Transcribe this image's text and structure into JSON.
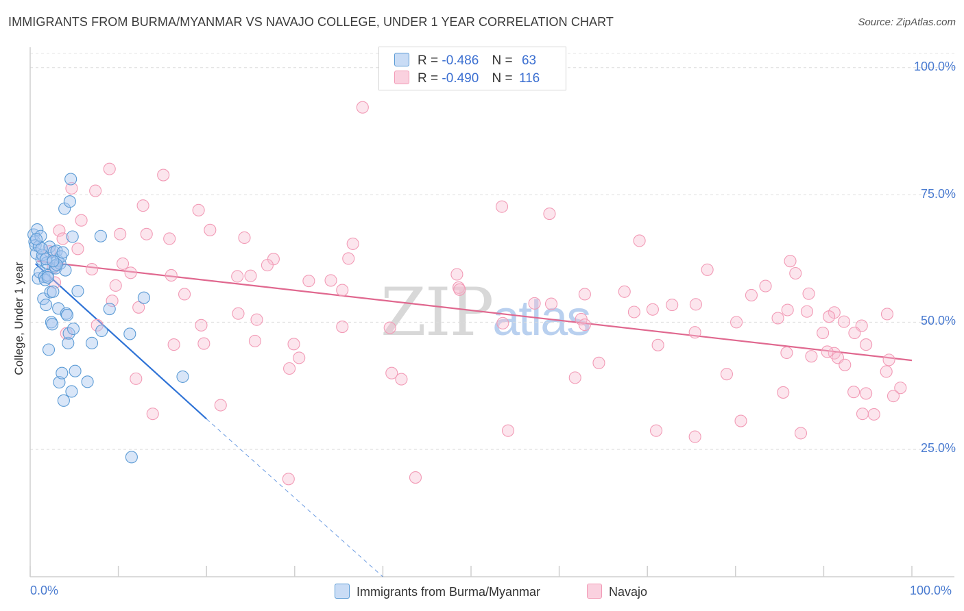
{
  "title": "IMMIGRANTS FROM BURMA/MYANMAR VS NAVAJO COLLEGE, UNDER 1 YEAR CORRELATION CHART",
  "source": "Source: ZipAtlas.com",
  "watermark": {
    "zip": "ZIP",
    "atlas": "atlas"
  },
  "colors": {
    "blue": "#5b9bd5",
    "blue_line": "#2f73d6",
    "pink": "#f29bb6",
    "pink_line": "#e0688f",
    "tick_text": "#4a7bd0"
  },
  "legend": {
    "rows": [
      {
        "r_label": "R =",
        "r_value": "-0.486",
        "n_label": "N =",
        "n_value": "63"
      },
      {
        "r_label": "R =",
        "r_value": "-0.490",
        "n_label": "N =",
        "n_value": "116"
      }
    ]
  },
  "chart_data": {
    "type": "scatter",
    "title": "IMMIGRANTS FROM BURMA/MYANMAR VS NAVAJO COLLEGE, UNDER 1 YEAR CORRELATION CHART",
    "xlabel": "",
    "ylabel": "College, Under 1 year",
    "xlim": [
      0,
      100
    ],
    "ylim": [
      0,
      104
    ],
    "x_tick_labels": [
      "0.0%",
      "100.0%"
    ],
    "y_tick_labels": [
      "100.0%",
      "75.0%",
      "50.0%",
      "25.0%"
    ],
    "y_ticks": [
      100,
      75,
      50,
      25
    ],
    "grid": true,
    "series": [
      {
        "name": "Immigrants from Burma/Myanmar",
        "trend": {
          "x0": 0.6,
          "y0": 61.5,
          "x1": 20,
          "y1": 31,
          "dash_to_x": 40,
          "dash_to_y": 0
        },
        "points": [
          [
            0.4,
            67.2
          ],
          [
            0.5,
            65.8
          ],
          [
            0.6,
            65.1
          ],
          [
            0.7,
            63.5
          ],
          [
            0.8,
            68.2
          ],
          [
            0.9,
            58.6
          ],
          [
            1.0,
            64.9
          ],
          [
            1.1,
            59.8
          ],
          [
            1.2,
            66.9
          ],
          [
            1.3,
            62.3
          ],
          [
            1.4,
            63.2
          ],
          [
            1.5,
            54.6
          ],
          [
            1.6,
            58.9
          ],
          [
            1.7,
            58.3
          ],
          [
            1.8,
            53.4
          ],
          [
            1.9,
            61.7
          ],
          [
            2.0,
            59.2
          ],
          [
            2.1,
            44.6
          ],
          [
            2.2,
            64.8
          ],
          [
            2.3,
            55.9
          ],
          [
            2.4,
            50.0
          ],
          [
            2.5,
            49.6
          ],
          [
            2.6,
            56.0
          ],
          [
            2.7,
            63.8
          ],
          [
            2.8,
            61.0
          ],
          [
            2.9,
            60.6
          ],
          [
            3.0,
            64.0
          ],
          [
            3.1,
            62.1
          ],
          [
            3.2,
            52.7
          ],
          [
            3.3,
            38.2
          ],
          [
            3.4,
            61.5
          ],
          [
            3.5,
            62.9
          ],
          [
            3.6,
            40.0
          ],
          [
            3.7,
            63.7
          ],
          [
            3.8,
            34.6
          ],
          [
            3.9,
            72.3
          ],
          [
            4.0,
            60.2
          ],
          [
            4.1,
            51.7
          ],
          [
            4.2,
            51.4
          ],
          [
            4.3,
            45.9
          ],
          [
            4.4,
            47.8
          ],
          [
            4.5,
            73.7
          ],
          [
            4.6,
            78.1
          ],
          [
            4.7,
            36.4
          ],
          [
            4.8,
            66.8
          ],
          [
            4.9,
            48.7
          ],
          [
            5.1,
            40.4
          ],
          [
            5.4,
            56.1
          ],
          [
            6.5,
            38.3
          ],
          [
            7.0,
            45.9
          ],
          [
            8.0,
            66.9
          ],
          [
            8.1,
            48.3
          ],
          [
            9.0,
            52.6
          ],
          [
            11.3,
            47.7
          ],
          [
            11.5,
            23.5
          ],
          [
            12.9,
            54.8
          ],
          [
            17.3,
            39.3
          ],
          [
            1.3,
            64.5
          ],
          [
            2.0,
            58.8
          ],
          [
            3.0,
            61.3
          ],
          [
            0.7,
            66.3
          ],
          [
            1.8,
            62.4
          ],
          [
            2.6,
            62.0
          ]
        ]
      },
      {
        "name": "Navajo",
        "trend": {
          "x0": 0.8,
          "y0": 62.0,
          "x1": 100,
          "y1": 42.5
        },
        "points": [
          [
            37.7,
            92.2
          ],
          [
            9.0,
            80.1
          ],
          [
            15.1,
            78.9
          ],
          [
            7.4,
            75.8
          ],
          [
            4.7,
            76.3
          ],
          [
            12.8,
            72.9
          ],
          [
            19.1,
            72.0
          ],
          [
            53.5,
            72.7
          ],
          [
            58.9,
            71.3
          ],
          [
            5.8,
            70.0
          ],
          [
            3.3,
            68.0
          ],
          [
            20.4,
            68.1
          ],
          [
            10.2,
            67.3
          ],
          [
            13.2,
            67.3
          ],
          [
            15.8,
            66.4
          ],
          [
            24.3,
            66.6
          ],
          [
            3.7,
            66.4
          ],
          [
            36.6,
            65.4
          ],
          [
            69.1,
            66.0
          ],
          [
            5.4,
            64.4
          ],
          [
            2.2,
            63.9
          ],
          [
            27.6,
            62.4
          ],
          [
            36.1,
            62.5
          ],
          [
            86.2,
            62.0
          ],
          [
            10.5,
            61.5
          ],
          [
            26.9,
            61.2
          ],
          [
            2.6,
            60.7
          ],
          [
            7.0,
            60.4
          ],
          [
            76.8,
            60.3
          ],
          [
            11.4,
            59.7
          ],
          [
            16.0,
            59.2
          ],
          [
            23.5,
            59.0
          ],
          [
            25.0,
            59.1
          ],
          [
            48.4,
            59.4
          ],
          [
            86.8,
            59.6
          ],
          [
            31.6,
            58.1
          ],
          [
            34.1,
            58.2
          ],
          [
            2.8,
            57.8
          ],
          [
            9.7,
            57.2
          ],
          [
            48.6,
            56.8
          ],
          [
            83.4,
            57.1
          ],
          [
            35.4,
            56.3
          ],
          [
            48.7,
            56.4
          ],
          [
            62.9,
            55.5
          ],
          [
            67.4,
            56.0
          ],
          [
            88.3,
            55.6
          ],
          [
            81.8,
            55.3
          ],
          [
            17.5,
            55.5
          ],
          [
            9.3,
            54.2
          ],
          [
            57.2,
            53.7
          ],
          [
            59.1,
            53.6
          ],
          [
            72.8,
            53.4
          ],
          [
            75.5,
            53.5
          ],
          [
            12.3,
            52.9
          ],
          [
            70.6,
            52.5
          ],
          [
            85.9,
            52.4
          ],
          [
            62.5,
            50.6
          ],
          [
            88.1,
            52.1
          ],
          [
            68.5,
            52.0
          ],
          [
            23.6,
            51.7
          ],
          [
            91.2,
            51.9
          ],
          [
            84.8,
            50.8
          ],
          [
            25.7,
            50.5
          ],
          [
            90.6,
            51.1
          ],
          [
            97.2,
            51.6
          ],
          [
            92.3,
            50.1
          ],
          [
            80.1,
            50.0
          ],
          [
            7.6,
            49.4
          ],
          [
            19.4,
            49.4
          ],
          [
            35.4,
            49.1
          ],
          [
            40.8,
            48.9
          ],
          [
            53.6,
            49.8
          ],
          [
            62.9,
            49.5
          ],
          [
            94.3,
            49.3
          ],
          [
            89.9,
            47.9
          ],
          [
            4.1,
            47.8
          ],
          [
            93.5,
            47.9
          ],
          [
            75.4,
            48.0
          ],
          [
            25.5,
            46.3
          ],
          [
            29.9,
            45.7
          ],
          [
            16.3,
            45.6
          ],
          [
            19.7,
            45.8
          ],
          [
            71.2,
            45.5
          ],
          [
            94.8,
            45.6
          ],
          [
            91.2,
            43.9
          ],
          [
            85.8,
            44.0
          ],
          [
            90.4,
            44.2
          ],
          [
            97.4,
            42.6
          ],
          [
            88.6,
            43.3
          ],
          [
            91.6,
            43.0
          ],
          [
            30.5,
            43.0
          ],
          [
            64.5,
            42.0
          ],
          [
            29.4,
            40.9
          ],
          [
            92.4,
            41.6
          ],
          [
            97.1,
            40.3
          ],
          [
            41.0,
            40.0
          ],
          [
            79.0,
            39.8
          ],
          [
            61.8,
            39.1
          ],
          [
            12.0,
            38.9
          ],
          [
            42.1,
            38.8
          ],
          [
            93.4,
            36.3
          ],
          [
            98.7,
            37.1
          ],
          [
            97.9,
            35.5
          ],
          [
            94.8,
            36.0
          ],
          [
            21.6,
            33.7
          ],
          [
            85.4,
            36.2
          ],
          [
            13.9,
            32.0
          ],
          [
            95.7,
            31.9
          ],
          [
            94.4,
            32.0
          ],
          [
            80.6,
            30.6
          ],
          [
            54.2,
            28.7
          ],
          [
            71.0,
            28.7
          ],
          [
            75.4,
            27.5
          ],
          [
            87.4,
            28.2
          ],
          [
            29.3,
            19.2
          ],
          [
            43.7,
            19.5
          ]
        ]
      }
    ]
  },
  "bottom_legend": [
    "Immigrants from Burma/Myanmar",
    "Navajo"
  ]
}
